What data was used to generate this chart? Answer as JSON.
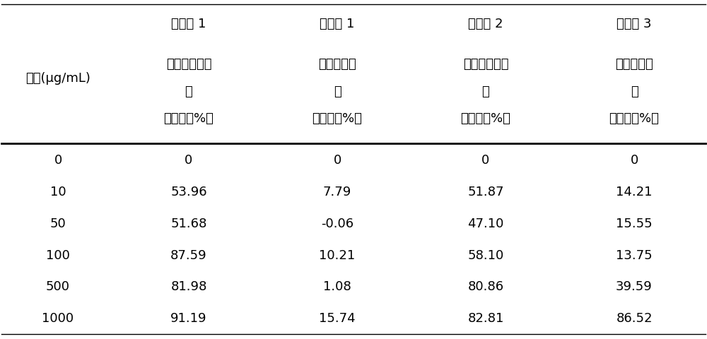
{
  "col0_header": "浓度(μg/mL)",
  "col_headers": [
    "实施例 1",
    "对比例 1",
    "对比例 2",
    "对比例 3"
  ],
  "col_subheaders": [
    "甲基丙基三硫\n醧",
    "二丙基二硫\n醧",
    "甲基丙基二硫\n醧",
    "二甲基三硫\n醧"
  ],
  "col_inhibition": [
    "抑制率（%）",
    "抑制率（%）",
    "抑制率（%）",
    "抑制率（%）"
  ],
  "rows": [
    [
      "0",
      "0",
      "0",
      "0",
      "0"
    ],
    [
      "10",
      "53.96",
      "7.79",
      "51.87",
      "14.21"
    ],
    [
      "50",
      "51.68",
      "-0.06",
      "47.10",
      "15.55"
    ],
    [
      "100",
      "87.59",
      "10.21",
      "58.10",
      "13.75"
    ],
    [
      "500",
      "81.98",
      "1.08",
      "80.86",
      "39.59"
    ],
    [
      "1000",
      "91.19",
      "15.74",
      "82.81",
      "86.52"
    ]
  ],
  "bg_color": "#ffffff",
  "text_color": "#000000",
  "line_color": "#000000",
  "font_size": 13,
  "header_font_size": 13
}
